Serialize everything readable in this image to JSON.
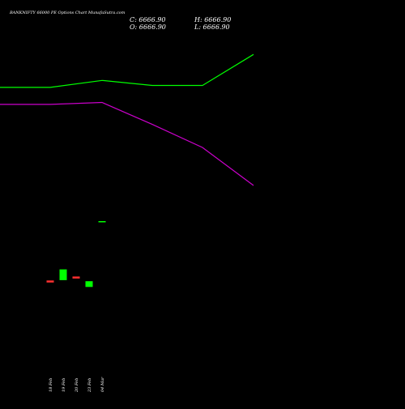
{
  "chart_data": {
    "type": "candlestick",
    "title": "BANKNIFTY 66000  PE Options  Chart MunafaSutra.com",
    "ohlc": {
      "close_label": "C: 6666.90",
      "high_label": "H: 6666.90",
      "open_label": "O: 6666.90",
      "low_label": "L: 6666.90"
    },
    "categories": [
      "18 Feb",
      "19 Feb",
      "20 Feb",
      "23 Feb",
      "04 Mar"
    ],
    "candles": [
      {
        "open": 1120,
        "high": 1120,
        "low": 1100,
        "close": 1100,
        "direction": "down"
      },
      {
        "open": 1125,
        "high": 1285,
        "low": 1125,
        "close": 1285,
        "direction": "up"
      },
      {
        "open": 1180,
        "high": 1180,
        "low": 1160,
        "close": 1160,
        "direction": "down"
      },
      {
        "open": 1025,
        "high": 1110,
        "low": 1025,
        "close": 1110,
        "direction": "up"
      },
      {
        "open": 6666.9,
        "high": 6666.9,
        "low": 6666.9,
        "close": 6666.9,
        "direction": "flat"
      }
    ],
    "upper_band": [
      22000,
      22000,
      22700,
      22200,
      22200,
      25300
    ],
    "lower_band": [
      20300,
      20300,
      20500,
      18300,
      16000,
      12200
    ],
    "band_x": [
      "start",
      "18 Feb",
      "19 Feb",
      "23 Feb",
      "04 Mar",
      "end"
    ],
    "colors": {
      "background": "#000000",
      "up": "#00ff00",
      "down": "#ff3030",
      "upper_band": "#00ff00",
      "lower_band": "#cc00cc",
      "text": "#ffffff"
    }
  }
}
